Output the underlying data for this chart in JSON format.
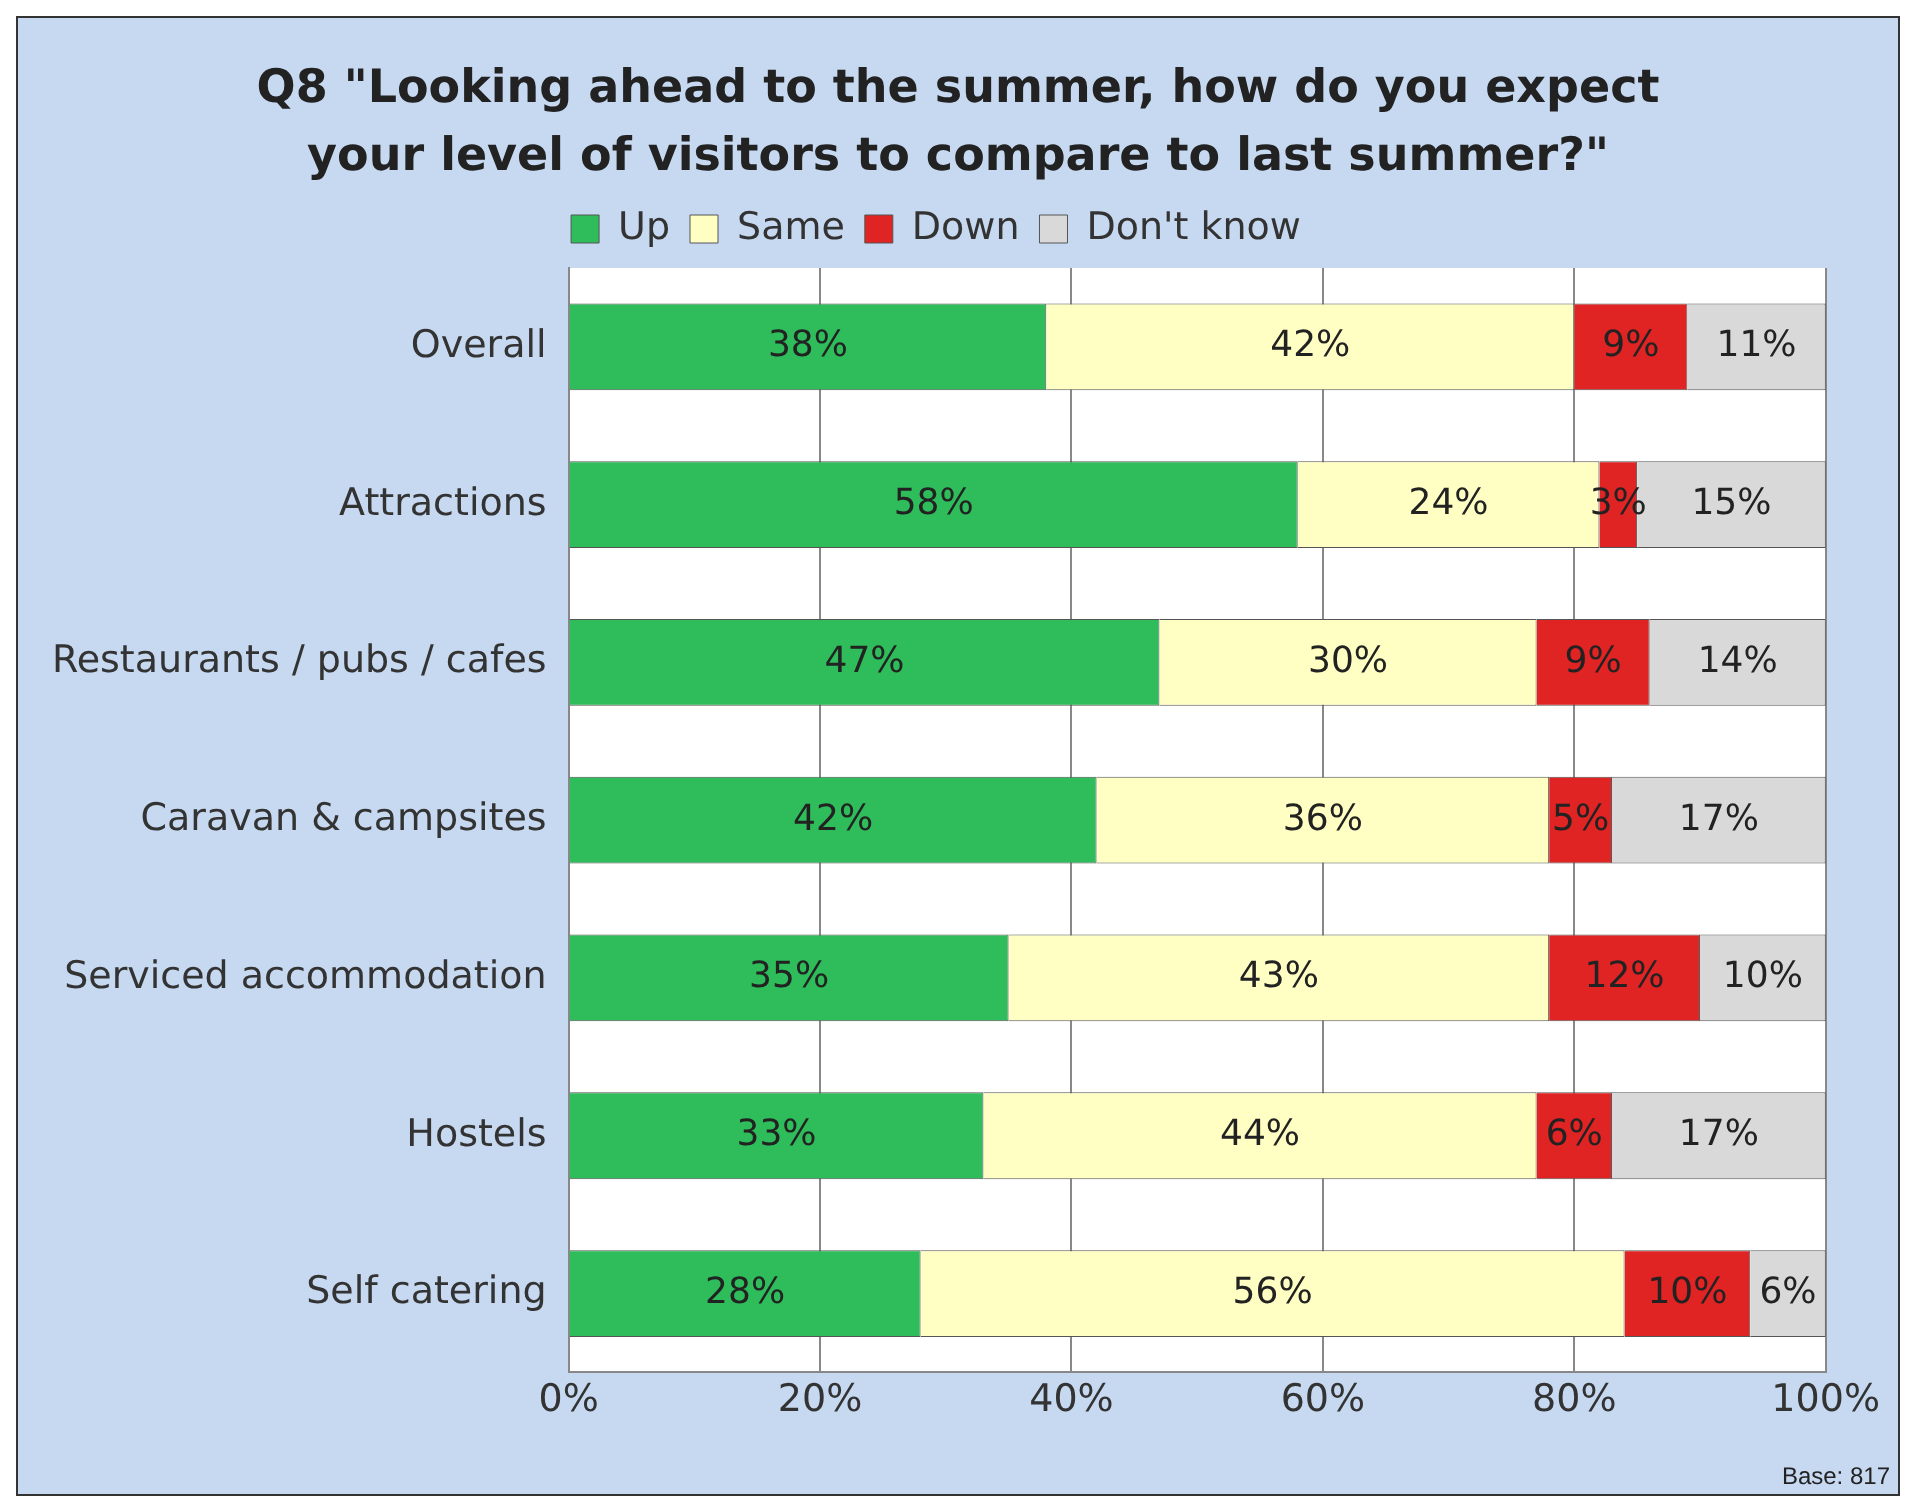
{
  "chart_data": {
    "type": "bar",
    "orientation": "horizontal",
    "stacked": true,
    "title": "Q8 \"Looking ahead to the summer, how do you expect your level of visitors to compare to last summer?\"",
    "categories": [
      "Overall",
      "Attractions",
      "Restaurants / pubs / cafes",
      "Caravan & campsites",
      "Serviced accommodation",
      "Hostels",
      "Self catering"
    ],
    "series": [
      {
        "name": "Up",
        "color": "#2ebd5a",
        "values": [
          38,
          58,
          47,
          42,
          35,
          33,
          28
        ],
        "value_labels": [
          "38%",
          "58%",
          "47%",
          "42%",
          "35%",
          "33%",
          "28%"
        ]
      },
      {
        "name": "Same",
        "color": "#ffffc4",
        "values": [
          42,
          24,
          30,
          36,
          43,
          44,
          56
        ],
        "value_labels": [
          "42%",
          "24%",
          "30%",
          "36%",
          "43%",
          "44%",
          "56%"
        ]
      },
      {
        "name": "Down",
        "color": "#e02424",
        "values": [
          9,
          3,
          9,
          5,
          12,
          6,
          10
        ],
        "value_labels": [
          "9%",
          "3%",
          "9%",
          "5%",
          "12%",
          "6%",
          "10%"
        ]
      },
      {
        "name": "Don't know",
        "color": "#d9d9d9",
        "values": [
          11,
          15,
          14,
          17,
          10,
          17,
          6
        ],
        "value_labels": [
          "11%",
          "15%",
          "14%",
          "17%",
          "10%",
          "17%",
          "6%"
        ]
      }
    ],
    "xlim": [
      0,
      100
    ],
    "xticks": [
      {
        "value": 0,
        "label": "0%"
      },
      {
        "value": 20,
        "label": "20%"
      },
      {
        "value": 40,
        "label": "40%"
      },
      {
        "value": 60,
        "label": "60%"
      },
      {
        "value": 80,
        "label": "80%"
      },
      {
        "value": 100,
        "label": "100%"
      }
    ],
    "grid": "x",
    "legend": "top",
    "annotations": [
      "Base: 817"
    ]
  }
}
